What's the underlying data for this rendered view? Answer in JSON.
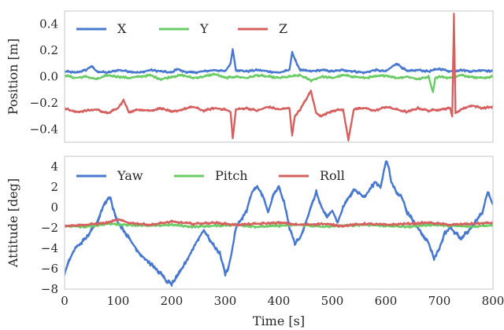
{
  "chart_data": [
    {
      "type": "line",
      "ylabel": "Position [m]",
      "xlim": [
        0,
        800
      ],
      "ylim": [
        -0.5,
        0.5
      ],
      "yticks": [
        {
          "value": 0.4,
          "label": "0.4"
        },
        {
          "value": 0.2,
          "label": "0.2"
        },
        {
          "value": 0.0,
          "label": "0.0"
        },
        {
          "value": -0.2,
          "label": "−0.2"
        },
        {
          "value": -0.4,
          "label": "−0.4"
        }
      ],
      "legend": "top-left",
      "grid": false,
      "series": [
        {
          "name": "X",
          "color": "#4878d0",
          "x": [
            0,
            20,
            40,
            50,
            60,
            80,
            100,
            120,
            140,
            160,
            180,
            200,
            210,
            220,
            240,
            260,
            280,
            300,
            310,
            314,
            320,
            340,
            360,
            380,
            400,
            420,
            425,
            430,
            440,
            460,
            480,
            500,
            520,
            540,
            560,
            580,
            600,
            620,
            640,
            660,
            680,
            700,
            720,
            740,
            760,
            780,
            800
          ],
          "y": [
            0.04,
            0.03,
            0.05,
            0.08,
            0.04,
            0.03,
            0.05,
            0.04,
            0.03,
            0.05,
            0.04,
            0.03,
            0.06,
            0.04,
            0.03,
            0.04,
            0.05,
            0.04,
            0.1,
            0.21,
            0.05,
            0.04,
            0.05,
            0.04,
            0.03,
            0.05,
            0.19,
            0.13,
            0.05,
            0.04,
            0.05,
            0.04,
            0.05,
            0.04,
            0.03,
            0.05,
            0.04,
            0.1,
            0.04,
            0.05,
            0.04,
            0.06,
            0.04,
            0.05,
            0.04,
            0.05,
            0.04
          ]
        },
        {
          "name": "Y",
          "color": "#6acc64",
          "x": [
            0,
            20,
            40,
            60,
            80,
            100,
            120,
            140,
            160,
            180,
            200,
            220,
            240,
            260,
            280,
            300,
            320,
            340,
            360,
            380,
            400,
            420,
            440,
            460,
            480,
            500,
            520,
            540,
            560,
            580,
            600,
            620,
            640,
            660,
            680,
            688,
            692,
            700,
            720,
            740,
            760,
            780,
            800
          ],
          "y": [
            0.01,
            -0.01,
            0.0,
            -0.02,
            0.01,
            0.0,
            -0.01,
            0.0,
            0.01,
            -0.02,
            0.0,
            0.01,
            -0.01,
            0.0,
            0.02,
            -0.01,
            0.0,
            -0.01,
            0.01,
            0.0,
            -0.01,
            0.0,
            0.01,
            -0.03,
            0.0,
            -0.01,
            0.01,
            0.0,
            -0.01,
            0.0,
            0.01,
            -0.01,
            0.0,
            -0.02,
            0.0,
            -0.12,
            -0.01,
            0.0,
            -0.01,
            0.01,
            0.0,
            -0.01,
            0.0
          ]
        },
        {
          "name": "Z",
          "color": "#d65f5f",
          "x": [
            0,
            20,
            40,
            60,
            80,
            100,
            110,
            120,
            140,
            160,
            180,
            200,
            220,
            240,
            260,
            280,
            300,
            310,
            314,
            320,
            340,
            360,
            380,
            400,
            420,
            425,
            430,
            440,
            460,
            470,
            480,
            500,
            520,
            530,
            540,
            560,
            580,
            600,
            620,
            640,
            660,
            680,
            700,
            720,
            724,
            727,
            730,
            740,
            760,
            780,
            800
          ],
          "y": [
            -0.24,
            -0.27,
            -0.26,
            -0.25,
            -0.28,
            -0.24,
            -0.18,
            -0.27,
            -0.25,
            -0.26,
            -0.24,
            -0.27,
            -0.25,
            -0.23,
            -0.26,
            -0.24,
            -0.25,
            -0.27,
            -0.47,
            -0.25,
            -0.24,
            -0.26,
            -0.23,
            -0.25,
            -0.24,
            -0.45,
            -0.3,
            -0.25,
            -0.11,
            -0.28,
            -0.3,
            -0.26,
            -0.25,
            -0.48,
            -0.25,
            -0.24,
            -0.26,
            -0.23,
            -0.25,
            -0.27,
            -0.24,
            -0.26,
            -0.25,
            -0.24,
            -0.3,
            0.48,
            -0.28,
            -0.25,
            -0.22,
            -0.24,
            -0.23
          ]
        }
      ]
    },
    {
      "type": "line",
      "ylabel": "Attitude [deg]",
      "xlabel": "Time [s]",
      "xlim": [
        0,
        800
      ],
      "ylim": [
        -8,
        5
      ],
      "xticks": [
        {
          "value": 0,
          "label": "0"
        },
        {
          "value": 100,
          "label": "100"
        },
        {
          "value": 200,
          "label": "200"
        },
        {
          "value": 300,
          "label": "300"
        },
        {
          "value": 400,
          "label": "400"
        },
        {
          "value": 500,
          "label": "500"
        },
        {
          "value": 600,
          "label": "600"
        },
        {
          "value": 700,
          "label": "700"
        },
        {
          "value": 800,
          "label": "800"
        }
      ],
      "yticks": [
        {
          "value": 4,
          "label": "4"
        },
        {
          "value": 2,
          "label": "2"
        },
        {
          "value": 0,
          "label": "0"
        },
        {
          "value": -2,
          "label": "−2"
        },
        {
          "value": -4,
          "label": "−4"
        },
        {
          "value": -6,
          "label": "−6"
        },
        {
          "value": -8,
          "label": "−8"
        }
      ],
      "legend": "top-left",
      "grid": false,
      "series": [
        {
          "name": "Yaw",
          "color": "#4878d0",
          "x": [
            0,
            10,
            20,
            40,
            60,
            75,
            85,
            90,
            100,
            110,
            120,
            140,
            160,
            180,
            190,
            200,
            210,
            230,
            245,
            260,
            275,
            290,
            300,
            305,
            310,
            320,
            340,
            350,
            360,
            370,
            380,
            390,
            400,
            410,
            420,
            430,
            440,
            450,
            460,
            470,
            480,
            490,
            500,
            510,
            520,
            540,
            560,
            580,
            590,
            600,
            605,
            610,
            620,
            630,
            640,
            660,
            680,
            690,
            700,
            710,
            720,
            740,
            760,
            780,
            790,
            800
          ],
          "y": [
            -6.5,
            -5.0,
            -4.0,
            -3.0,
            -1.5,
            0.5,
            1.0,
            0.0,
            -1.5,
            -2.2,
            -3.0,
            -4.5,
            -5.5,
            -6.5,
            -7.2,
            -7.5,
            -6.8,
            -5.0,
            -3.5,
            -2.2,
            -3.5,
            -4.5,
            -6.5,
            -6.0,
            -5.0,
            -2.0,
            -0.3,
            1.5,
            2.0,
            1.2,
            -0.5,
            1.2,
            2.0,
            0.5,
            -2.0,
            -3.5,
            -3.0,
            -1.5,
            0.0,
            1.5,
            0.0,
            -1.0,
            -0.3,
            -1.5,
            0.0,
            1.8,
            1.0,
            2.5,
            2.0,
            4.5,
            4.0,
            2.5,
            1.5,
            1.0,
            -0.5,
            -2.0,
            -3.5,
            -5.0,
            -4.0,
            -2.5,
            -2.0,
            -3.0,
            -2.0,
            -0.5,
            1.5,
            0.3
          ]
        },
        {
          "name": "Pitch",
          "color": "#6acc64",
          "x": [
            0,
            40,
            80,
            120,
            160,
            200,
            240,
            280,
            320,
            360,
            400,
            440,
            480,
            520,
            560,
            600,
            640,
            680,
            720,
            760,
            800
          ],
          "y": [
            -1.8,
            -1.9,
            -1.6,
            -1.7,
            -1.8,
            -1.7,
            -1.9,
            -1.8,
            -1.7,
            -1.9,
            -1.8,
            -1.7,
            -1.9,
            -1.8,
            -1.7,
            -1.8,
            -1.9,
            -1.7,
            -1.8,
            -1.9,
            -1.7
          ]
        },
        {
          "name": "Roll",
          "color": "#d65f5f",
          "x": [
            0,
            40,
            80,
            100,
            120,
            160,
            200,
            240,
            280,
            320,
            360,
            400,
            440,
            480,
            520,
            560,
            600,
            640,
            680,
            720,
            760,
            800
          ],
          "y": [
            -1.8,
            -1.7,
            -1.5,
            -1.2,
            -1.5,
            -1.7,
            -1.4,
            -1.6,
            -1.5,
            -1.7,
            -1.6,
            -1.5,
            -1.7,
            -1.6,
            -1.8,
            -1.6,
            -1.7,
            -1.6,
            -1.5,
            -1.7,
            -1.6,
            -1.5
          ]
        }
      ]
    }
  ]
}
